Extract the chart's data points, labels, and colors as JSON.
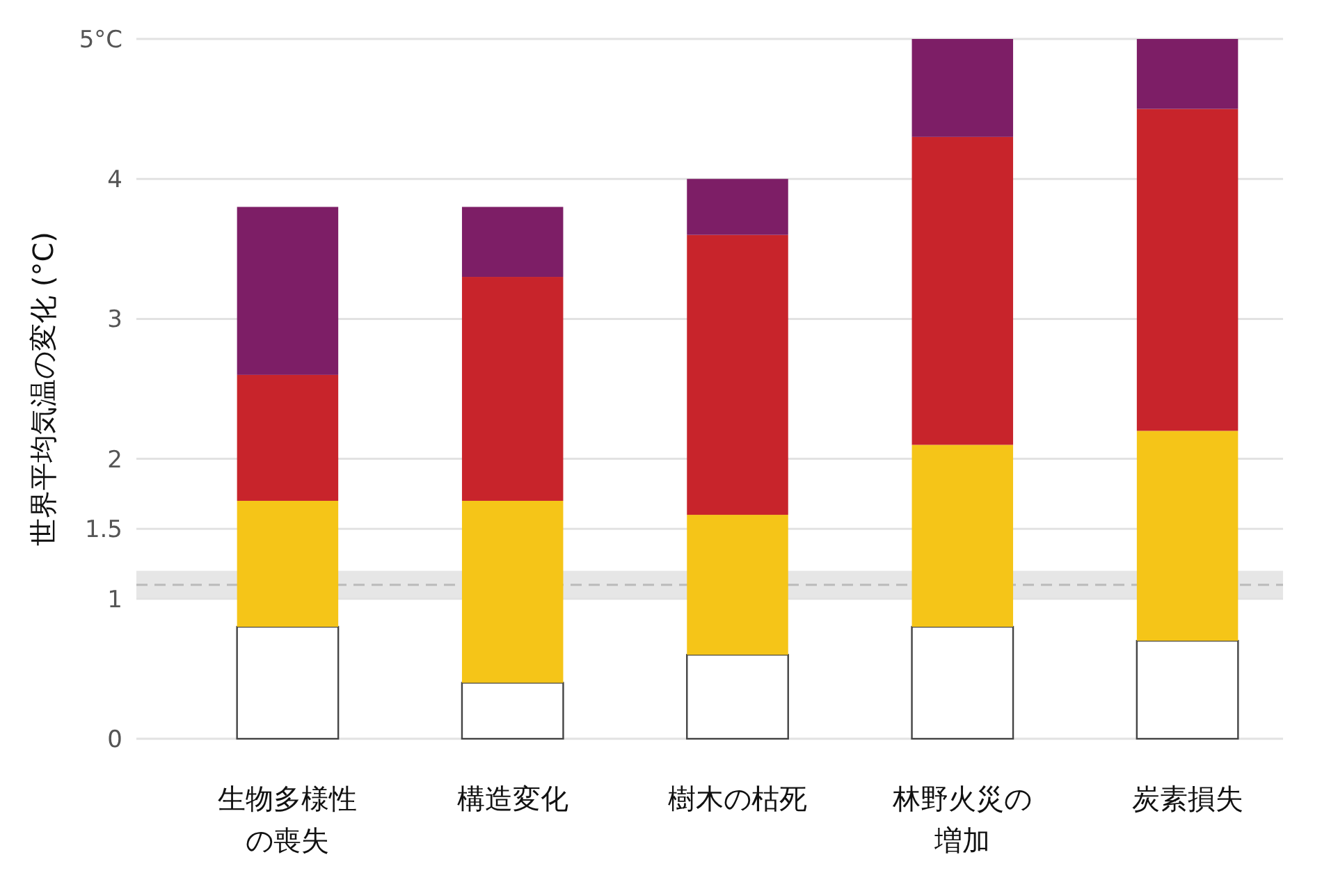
{
  "chart_data": {
    "type": "bar",
    "stacked": true,
    "ylabel": "世界平均気温の変化 (°C)",
    "categories": [
      "生物多様性の喪失",
      "構造変化",
      "樹木の枯死",
      "林野火災の増加",
      "炭素損失"
    ],
    "ylim": [
      0,
      5
    ],
    "yticks": [
      0,
      1,
      1.5,
      2,
      3,
      4,
      {
        "value": 5,
        "label": "5°C"
      }
    ],
    "grid": "y",
    "series": [
      {
        "color": "#ffffff",
        "values": [
          0.8,
          0.4,
          0.6,
          0.8,
          0.7
        ]
      },
      {
        "color": "#f5c518",
        "values": [
          0.9,
          1.3,
          1.0,
          1.3,
          1.5
        ]
      },
      {
        "color": "#c8242b",
        "values": [
          0.9,
          1.6,
          2.0,
          2.2,
          2.3
        ]
      },
      {
        "color": "#7d1e66",
        "values": [
          1.2,
          0.5,
          0.4,
          0.7,
          0.5
        ]
      }
    ],
    "bands": [
      {
        "axis": "y",
        "from": 1.0,
        "to": 1.2,
        "color": "#e6e6e6"
      }
    ],
    "ref_lines": [
      {
        "axis": "y",
        "value": 1.1,
        "line_style": "dashed",
        "color": "#bbbbbb"
      }
    ]
  }
}
